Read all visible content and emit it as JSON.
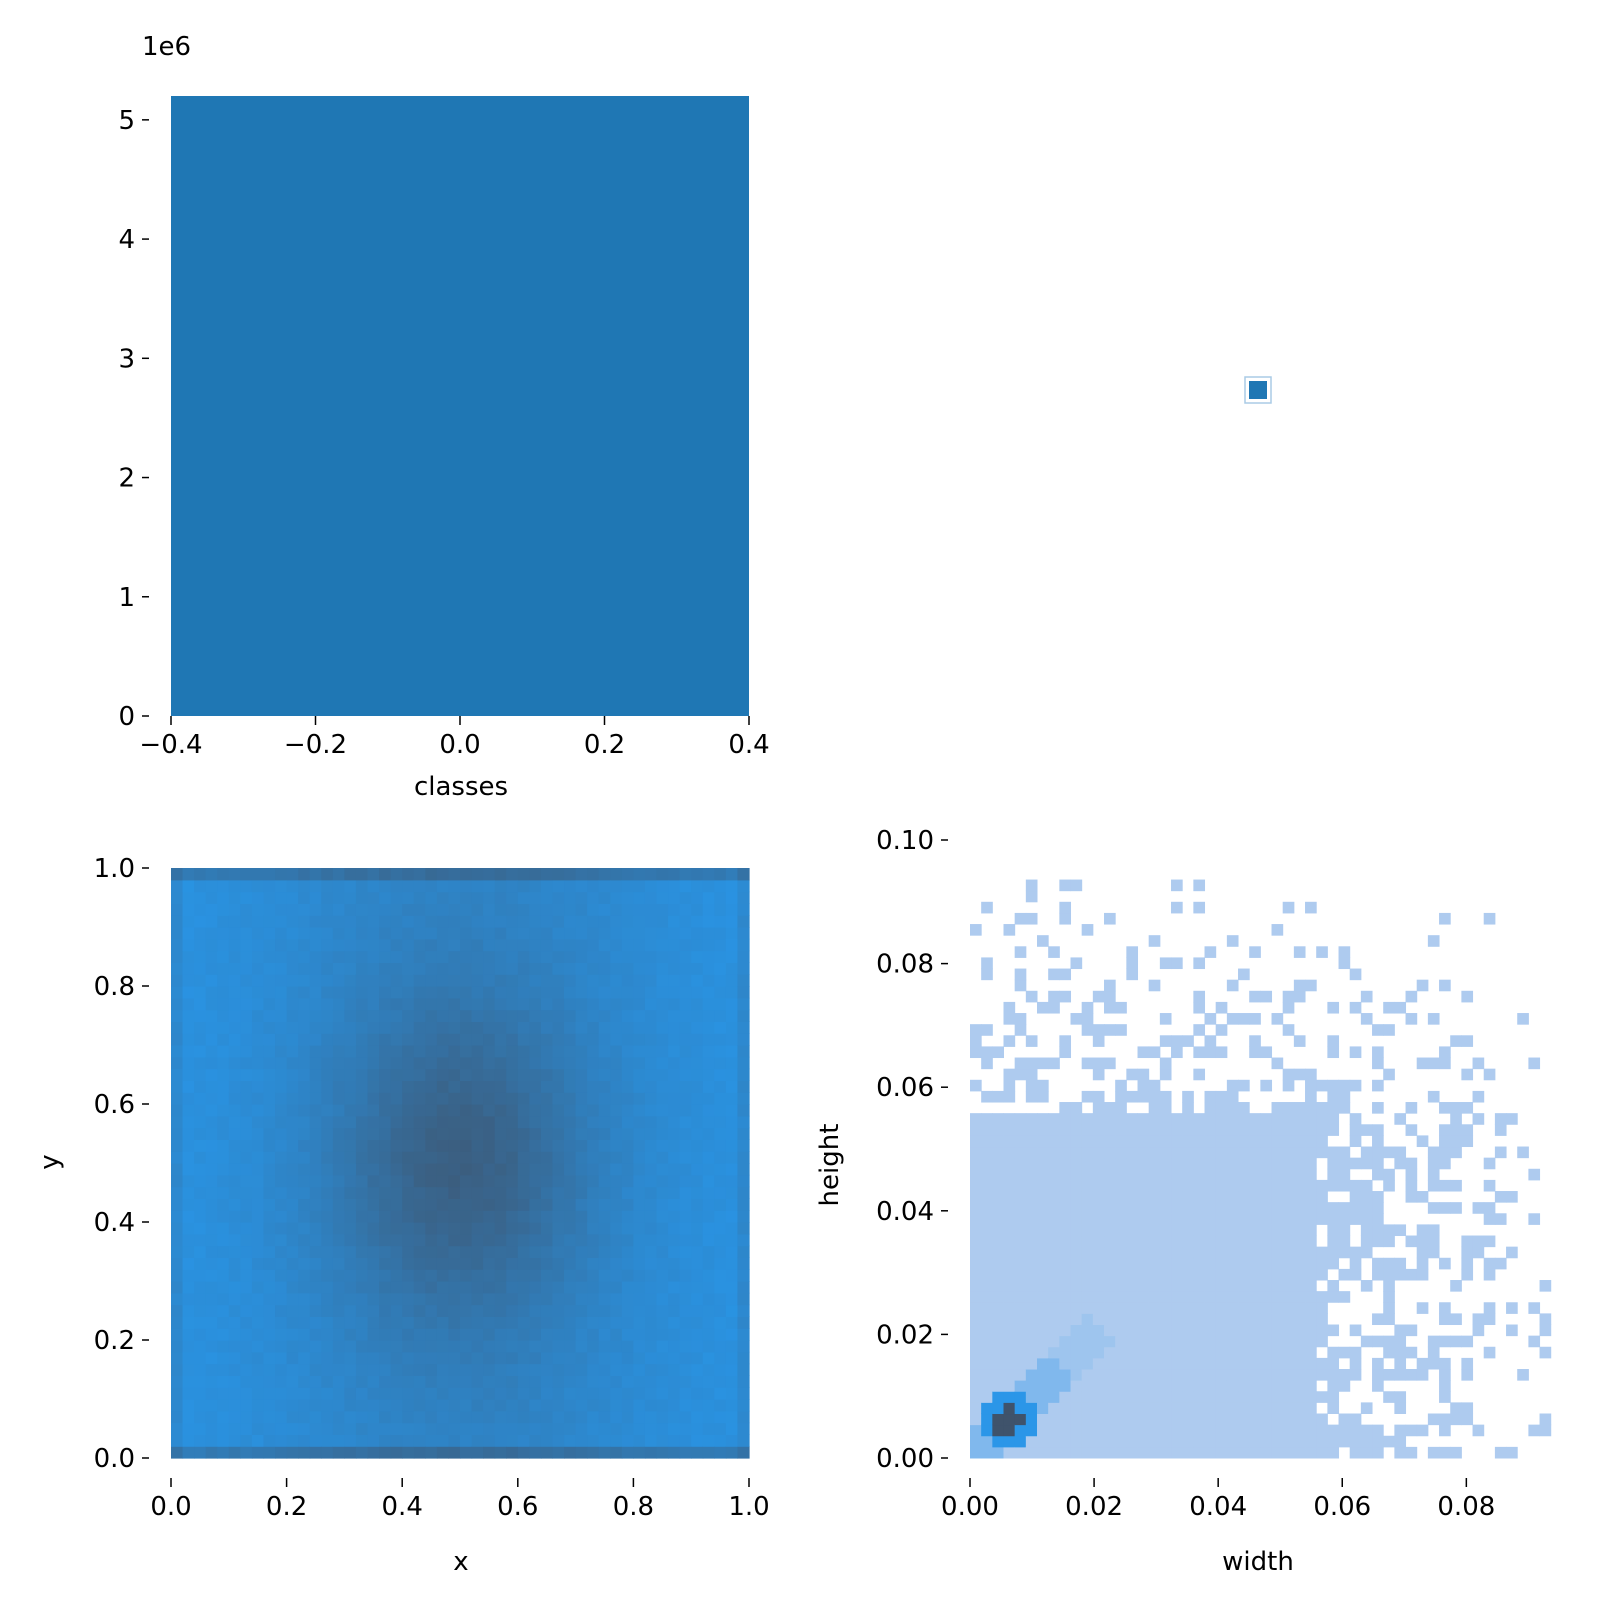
{
  "chart_data": [
    {
      "id": "classes-hist",
      "type": "bar",
      "title": "",
      "xlabel": "classes",
      "ylabel": "",
      "y_offset_label": "1e6",
      "xlim": [
        -0.4,
        0.4
      ],
      "ylim": [
        0,
        5200000
      ],
      "x_ticks": [
        -0.4,
        -0.2,
        0.0,
        0.2,
        0.4
      ],
      "x_tick_labels": [
        "−0.4",
        "−0.2",
        "0.0",
        "0.2",
        "0.4"
      ],
      "y_ticks": [
        0,
        1000000,
        2000000,
        3000000,
        4000000,
        5000000
      ],
      "y_tick_labels": [
        "0",
        "1",
        "2",
        "3",
        "4",
        "5"
      ],
      "bars": [
        {
          "x0": -0.4,
          "x1": 0.4,
          "value": 5200000
        }
      ],
      "color": "#1f77b4",
      "grid": false
    },
    {
      "id": "classes-pair",
      "type": "scatter",
      "title": "",
      "xlabel": "",
      "ylabel": "",
      "points": [
        {
          "x": 0,
          "y": 0
        }
      ],
      "color": "#1f77b4",
      "grid": false
    },
    {
      "id": "xy-hist2d",
      "type": "heatmap",
      "title": "",
      "xlabel": "x",
      "ylabel": "y",
      "xlim": [
        0,
        1
      ],
      "ylim": [
        0,
        1
      ],
      "x_ticks": [
        0.0,
        0.2,
        0.4,
        0.6,
        0.8,
        1.0
      ],
      "x_tick_labels": [
        "0.0",
        "0.2",
        "0.4",
        "0.6",
        "0.8",
        "1.0"
      ],
      "y_ticks": [
        0.0,
        0.2,
        0.4,
        0.6,
        0.8,
        1.0
      ],
      "y_tick_labels": [
        "0.0",
        "0.2",
        "0.4",
        "0.6",
        "0.8",
        "1.0"
      ],
      "bins": 50,
      "density": "dense center near (0.5, 0.5) with denser rows at y=0 and y=1",
      "color_low": "#2994e4",
      "color_high": "#3f536b",
      "grid": false
    },
    {
      "id": "wh-hist2d",
      "type": "heatmap",
      "title": "",
      "xlabel": "width",
      "ylabel": "height",
      "xlim": [
        0,
        0.093
      ],
      "ylim": [
        0,
        0.1
      ],
      "x_ticks": [
        0.0,
        0.02,
        0.04,
        0.06,
        0.08
      ],
      "x_tick_labels": [
        "0.00",
        "0.02",
        "0.04",
        "0.06",
        "0.08"
      ],
      "y_ticks": [
        0.0,
        0.02,
        0.04,
        0.06,
        0.08,
        0.1
      ],
      "y_tick_labels": [
        "0.00",
        "0.02",
        "0.04",
        "0.06",
        "0.08",
        "0.10"
      ],
      "bin_size": 0.0018,
      "dense_region": {
        "width_max": 0.055,
        "height_max": 0.055
      },
      "peak": {
        "width": 0.006,
        "height": 0.006
      },
      "color_fill": "#aecbef",
      "color_mid": "#2b96e8",
      "color_peak": "#3f536b",
      "grid": false
    }
  ]
}
